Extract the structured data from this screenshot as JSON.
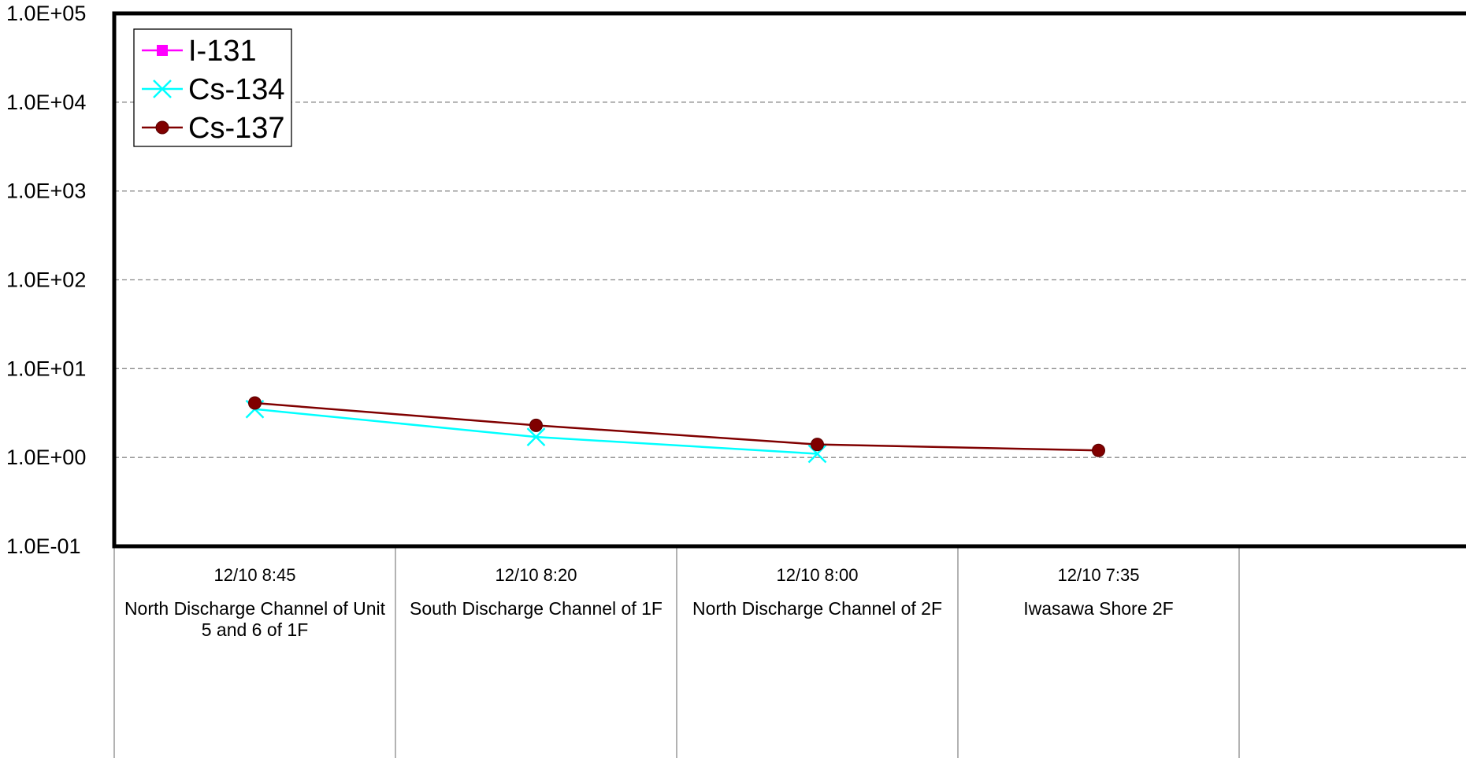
{
  "chart_data": {
    "type": "line",
    "y_scale": "log",
    "ylim": [
      0.1,
      100000
    ],
    "y_ticks": [
      "1.0E-01",
      "1.0E+00",
      "1.0E+01",
      "1.0E+02",
      "1.0E+03",
      "1.0E+04",
      "1.0E+05"
    ],
    "y_tick_values": [
      0.1,
      1,
      10,
      100,
      1000,
      10000,
      100000
    ],
    "grid": "horizontal dashed",
    "legend_position": "top-left",
    "categories": [
      {
        "time": "12/10 8:45",
        "location_line1": "North Discharge Channel of Unit",
        "location_line2": "5 and 6 of 1F"
      },
      {
        "time": "12/10 8:20",
        "location_line1": "South Discharge Channel of 1F",
        "location_line2": ""
      },
      {
        "time": "12/10 8:00",
        "location_line1": "North Discharge Channel of 2F",
        "location_line2": ""
      },
      {
        "time": "12/10 7:35",
        "location_line1": "Iwasawa Shore 2F",
        "location_line2": ""
      }
    ],
    "series": [
      {
        "name": "I-131",
        "color": "#ff00ff",
        "marker": "square",
        "values": [
          null,
          null,
          null,
          null
        ]
      },
      {
        "name": "Cs-134",
        "color": "#00ffff",
        "marker": "x",
        "values": [
          3.5,
          1.7,
          1.1,
          null
        ]
      },
      {
        "name": "Cs-137",
        "color": "#800000",
        "marker": "circle",
        "values": [
          4.1,
          2.3,
          1.4,
          1.2
        ]
      }
    ]
  }
}
